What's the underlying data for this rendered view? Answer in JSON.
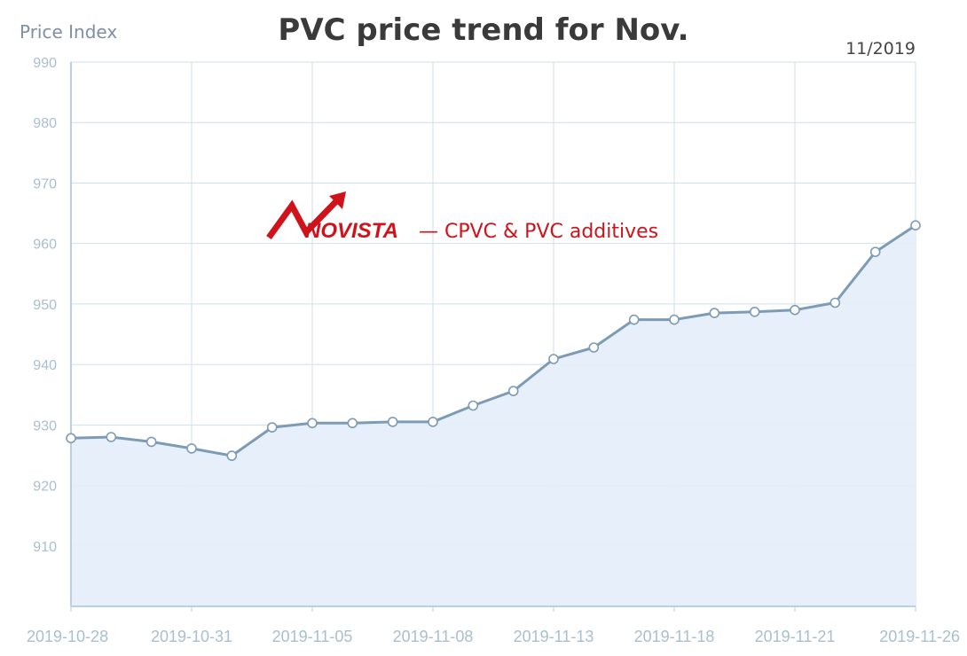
{
  "header": {
    "y_axis_label": "Price Index",
    "title": "PVC price trend for Nov.",
    "subtitle": "11/2019"
  },
  "watermark": {
    "brand": "NOVISTA",
    "tagline": "— CPVC & PVC additives",
    "color": "#d0121b"
  },
  "colors": {
    "line": "#7d9bb5",
    "fill": "#e4eef9",
    "grid": "#cfdfea",
    "axis": "#b9d0e2",
    "tick_text": "#a9bfd0"
  },
  "chart_data": {
    "type": "area",
    "title": "PVC price trend for Nov.",
    "subtitle": "11/2019",
    "ylabel": "Price Index",
    "xlabel": "",
    "ylim": [
      900,
      990
    ],
    "yticks": [
      910,
      920,
      930,
      940,
      950,
      960,
      970,
      980,
      990
    ],
    "grid": true,
    "x_tick_labels": [
      "2019-10-28",
      "2019-10-31",
      "2019-11-05",
      "2019-11-08",
      "2019-11-13",
      "2019-11-18",
      "2019-11-21",
      "2019-11-26"
    ],
    "series": [
      {
        "values": [
          927.8,
          928.0,
          927.2,
          926.1,
          924.9,
          929.6,
          930.3,
          930.3,
          930.5,
          930.5,
          933.2,
          935.6,
          940.9,
          942.8,
          947.4,
          947.4,
          948.5,
          948.7,
          949.0,
          950.2,
          958.6,
          963.0
        ]
      }
    ]
  }
}
